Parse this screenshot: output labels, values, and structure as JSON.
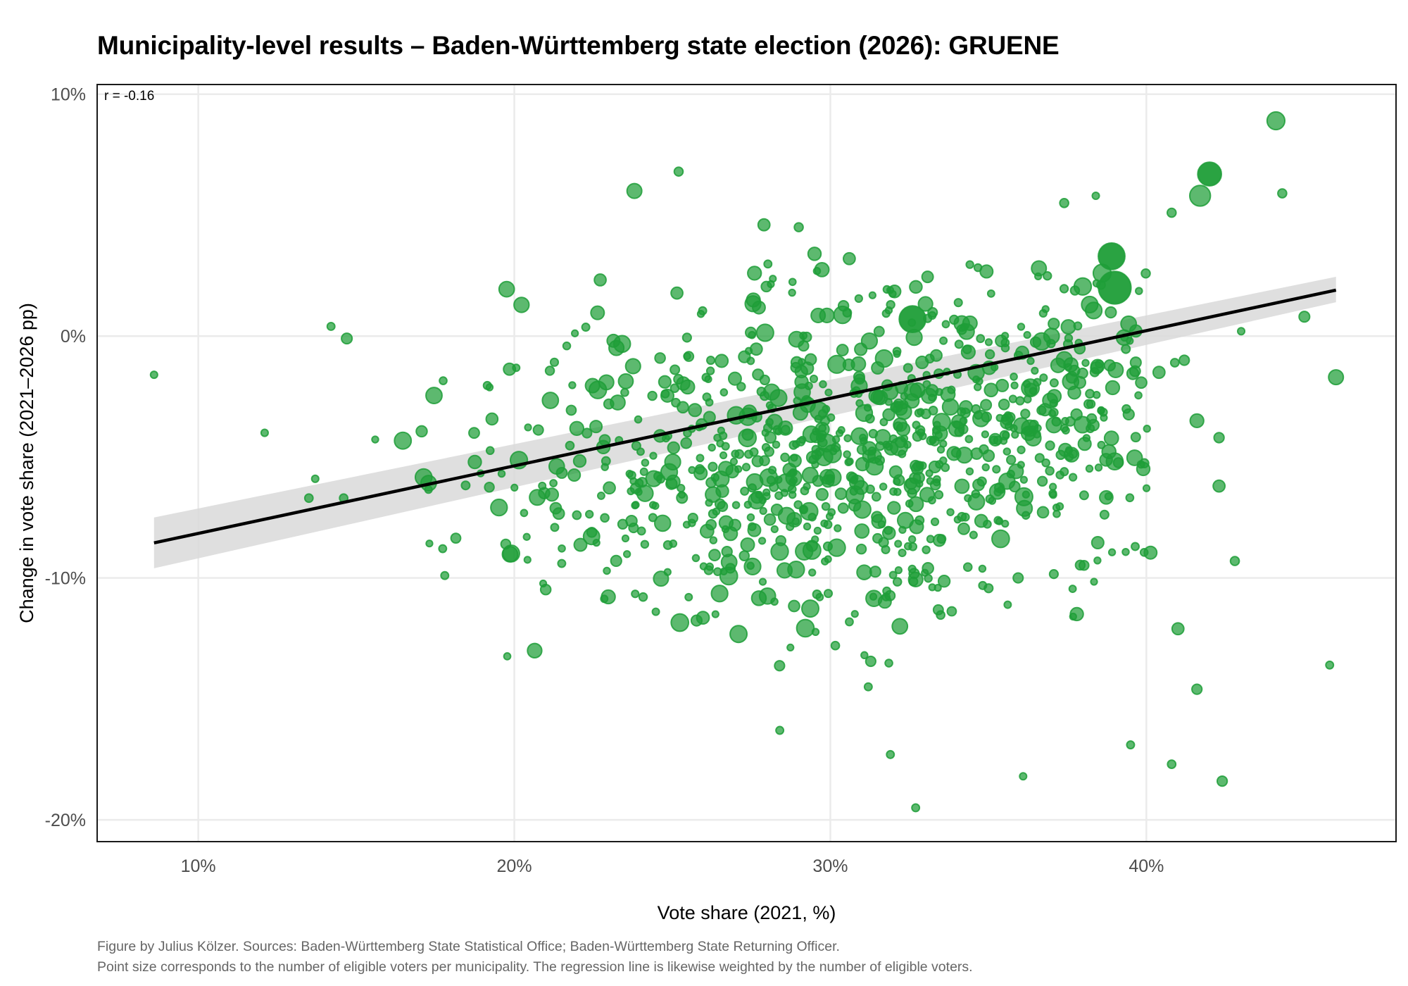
{
  "chart_data": {
    "type": "scatter",
    "title": "Municipality-level results – Baden-Württemberg state election (2026): GRUENE",
    "xlabel": "Vote share (2021, %)",
    "ylabel": "Change in vote share (2021–2026 pp)",
    "xlim": [
      6.8,
      47.9
    ],
    "ylim": [
      -20.9,
      10.4
    ],
    "x_ticks": [
      10,
      20,
      30,
      40
    ],
    "x_tick_labels": [
      "10%",
      "20%",
      "30%",
      "40%"
    ],
    "y_ticks": [
      10,
      0,
      -10,
      -20
    ],
    "y_tick_labels": [
      "10%",
      "0%",
      "-10%",
      "-20%"
    ],
    "grid": true,
    "annotation": "r = -0.16",
    "annotation_position": "top-left",
    "point_color": "#1f9e38",
    "point_opacity": 0.7,
    "size_variable": "eligible voters per municipality",
    "regression": {
      "weighted": true,
      "x_range": [
        8.6,
        46.0
      ],
      "y_at_start": -8.55,
      "y_at_end": 1.9,
      "ci_at_start": [
        -9.6,
        -7.5
      ],
      "ci_at_end": [
        1.4,
        2.45
      ],
      "line_color": "#000000",
      "ribbon_color": "#d9d9d9"
    },
    "notable_points": [
      {
        "x": 44.1,
        "y": 8.9,
        "size": 3
      },
      {
        "x": 42.0,
        "y": 6.7,
        "size": 4
      },
      {
        "x": 41.7,
        "y": 5.8,
        "size": 3.5
      },
      {
        "x": 44.3,
        "y": 5.9,
        "size": 1.5
      },
      {
        "x": 40.8,
        "y": 5.1,
        "size": 1.5
      },
      {
        "x": 38.9,
        "y": 3.3,
        "size": 4.5
      },
      {
        "x": 39.0,
        "y": 2.0,
        "size": 5.5
      },
      {
        "x": 38.6,
        "y": 2.6,
        "size": 3
      },
      {
        "x": 32.6,
        "y": 0.7,
        "size": 4.5
      },
      {
        "x": 36.6,
        "y": 2.8,
        "size": 2.5
      },
      {
        "x": 37.4,
        "y": 5.5,
        "size": 1.5
      },
      {
        "x": 38.4,
        "y": 5.8,
        "size": 1.2
      },
      {
        "x": 25.2,
        "y": 6.8,
        "size": 1.5
      },
      {
        "x": 23.8,
        "y": 6.0,
        "size": 2.5
      },
      {
        "x": 27.9,
        "y": 4.6,
        "size": 2
      },
      {
        "x": 29.0,
        "y": 4.5,
        "size": 1.5
      },
      {
        "x": 29.5,
        "y": 3.4,
        "size": 2.2
      },
      {
        "x": 30.6,
        "y": 3.2,
        "size": 2
      },
      {
        "x": 27.6,
        "y": 2.6,
        "size": 2.3
      },
      {
        "x": 8.6,
        "y": -1.6,
        "size": 1.2
      },
      {
        "x": 12.1,
        "y": -4.0,
        "size": 1.2
      },
      {
        "x": 14.2,
        "y": 0.4,
        "size": 1.3
      },
      {
        "x": 14.7,
        "y": -0.1,
        "size": 1.8
      },
      {
        "x": 13.7,
        "y": -5.9,
        "size": 1.2
      },
      {
        "x": 13.5,
        "y": -6.7,
        "size": 1.4
      },
      {
        "x": 14.6,
        "y": -6.7,
        "size": 1.4
      },
      {
        "x": 17.8,
        "y": -9.9,
        "size": 1.3
      },
      {
        "x": 21.5,
        "y": -9.4,
        "size": 1.3
      },
      {
        "x": 46.0,
        "y": -1.7,
        "size": 2.5
      },
      {
        "x": 45.8,
        "y": -13.6,
        "size": 1.3
      },
      {
        "x": 45.0,
        "y": 0.8,
        "size": 1.8
      },
      {
        "x": 43.0,
        "y": 0.2,
        "size": 1.2
      },
      {
        "x": 42.3,
        "y": -6.2,
        "size": 2
      },
      {
        "x": 42.8,
        "y": -9.3,
        "size": 1.5
      },
      {
        "x": 42.4,
        "y": -18.4,
        "size": 1.7
      },
      {
        "x": 40.8,
        "y": -17.7,
        "size": 1.4
      },
      {
        "x": 41.6,
        "y": -14.6,
        "size": 1.7
      },
      {
        "x": 41.0,
        "y": -12.1,
        "size": 2
      },
      {
        "x": 32.7,
        "y": -19.5,
        "size": 1.3
      },
      {
        "x": 28.4,
        "y": -16.3,
        "size": 1.3
      },
      {
        "x": 31.9,
        "y": -17.3,
        "size": 1.3
      },
      {
        "x": 36.1,
        "y": -18.2,
        "size": 1.2
      },
      {
        "x": 39.5,
        "y": -16.9,
        "size": 1.3
      },
      {
        "x": 41.6,
        "y": -3.5,
        "size": 2.3
      },
      {
        "x": 42.3,
        "y": -4.2,
        "size": 1.7
      },
      {
        "x": 41.2,
        "y": -1.0,
        "size": 1.7
      },
      {
        "x": 40.9,
        "y": -1.1,
        "size": 1.4
      },
      {
        "x": 40.4,
        "y": -1.5,
        "size": 2
      },
      {
        "x": 37.0,
        "y": 0.0,
        "size": 2.6
      },
      {
        "x": 31.2,
        "y": -14.5,
        "size": 1.3
      }
    ],
    "cloud_description": "About 950 municipalities, mostly between 19% and 40% vote share in 2021 and between -13 and +2 pp change, centered near (31%, -4 pp)."
  },
  "caption": {
    "line1": "Figure by Julius Kölzer. Sources: Baden-Württemberg State Statistical Office; Baden-Württemberg State Returning Officer.",
    "line2": "Point size corresponds to the number of eligible voters per municipality. The regression line is likewise weighted by the number of eligible voters."
  }
}
